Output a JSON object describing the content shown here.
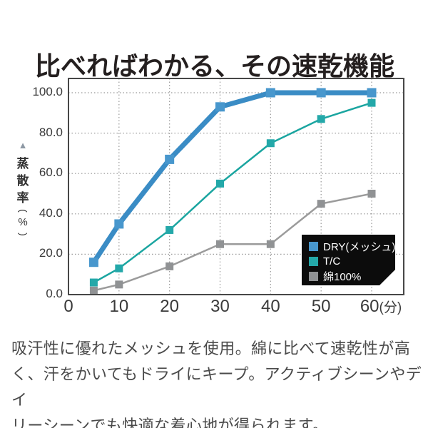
{
  "title": "比べればわかる、その速乾機能",
  "description": "吸汗性に優れたメッシュを使用。綿に比べて速乾性が高\nく、汗をかいてもドライにキープ。アクティブシーンやデイ\nリーシーンでも快適な着心地が得られます。",
  "y_axis": {
    "arrow": "▲",
    "label": "蒸散率",
    "unit_open": "(",
    "unit": "%",
    "unit_close": ")"
  },
  "colors": {
    "dry_blue_line": "#3a8cc5",
    "dry_blue_marker": "#4897cd",
    "tc_teal_line": "#1aa5a0",
    "tc_teal_marker": "#24a8a9",
    "cotton_gray_line": "#9b9b9b",
    "cotton_gray_marker": "#909294",
    "grid": "#999999",
    "frame": "#474747",
    "legend_bg": "#0c0c0c",
    "title_text": "#241f1f",
    "body_text": "#4a4a4a"
  },
  "chart_data": {
    "type": "line",
    "title": "",
    "xlabel": "",
    "ylabel": "蒸散率(%)",
    "x_unit": "(分)",
    "grid": true,
    "legend_position": "bottom-right",
    "xlim": [
      0,
      66
    ],
    "ylim": [
      0,
      106
    ],
    "x": [
      5,
      10,
      20,
      30,
      40,
      50,
      60
    ],
    "series": [
      {
        "name": "DRY(メッシュ)",
        "values": [
          16,
          35,
          67,
          93,
          100,
          100,
          100
        ],
        "color": "#3a8cc5",
        "marker_color": "#4897cd",
        "line_width": 7,
        "marker_size": 13
      },
      {
        "name": "T/C",
        "values": [
          6,
          13,
          32,
          55,
          75,
          87,
          95
        ],
        "color": "#1aa5a0",
        "marker_color": "#24a8a9",
        "line_width": 2.5,
        "marker_size": 11
      },
      {
        "name": "綿100%",
        "values": [
          2,
          5,
          14,
          25,
          25,
          45,
          50
        ],
        "color": "#9b9b9b",
        "marker_color": "#909294",
        "line_width": 2.5,
        "marker_size": 11
      }
    ],
    "y_ticks": [
      {
        "label": "0.0",
        "value": 0
      },
      {
        "label": "20.0",
        "value": 20
      },
      {
        "label": "40.0",
        "value": 40
      },
      {
        "label": "60.0",
        "value": 60
      },
      {
        "label": "80.0",
        "value": 80
      },
      {
        "label": "100.0",
        "value": 100
      }
    ],
    "x_ticks": [
      {
        "label": "0",
        "value": 0
      },
      {
        "label": "10",
        "value": 10
      },
      {
        "label": "20",
        "value": 20
      },
      {
        "label": "30",
        "value": 30
      },
      {
        "label": "40",
        "value": 40
      },
      {
        "label": "50",
        "value": 50
      },
      {
        "label": "60",
        "value": 60,
        "unit": "(分)"
      }
    ]
  }
}
